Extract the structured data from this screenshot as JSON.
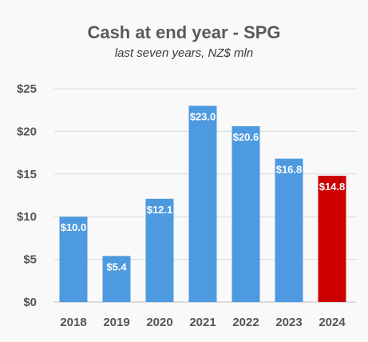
{
  "chart_data": {
    "type": "bar",
    "title": "Cash at end year - SPG",
    "subtitle": "last seven years, NZ$ mln",
    "categories": [
      "2018",
      "2019",
      "2020",
      "2021",
      "2022",
      "2023",
      "2024"
    ],
    "values": [
      10.0,
      5.4,
      12.1,
      23.0,
      20.6,
      16.8,
      14.8
    ],
    "data_labels": [
      "$10.0",
      "$5.4",
      "$12.1",
      "$23.0",
      "$20.6",
      "$16.8",
      "$14.8"
    ],
    "bar_colors": [
      "#4e9ae0",
      "#4e9ae0",
      "#4e9ae0",
      "#4e9ae0",
      "#4e9ae0",
      "#4e9ae0",
      "#cc0000"
    ],
    "y_ticks": [
      0,
      5,
      10,
      15,
      20,
      25
    ],
    "y_tick_labels": [
      "$0",
      "$5",
      "$10",
      "$15",
      "$20",
      "$25"
    ],
    "ylim": [
      0,
      25
    ],
    "xlabel": "",
    "ylabel": "",
    "grid": true,
    "legend": "none"
  }
}
